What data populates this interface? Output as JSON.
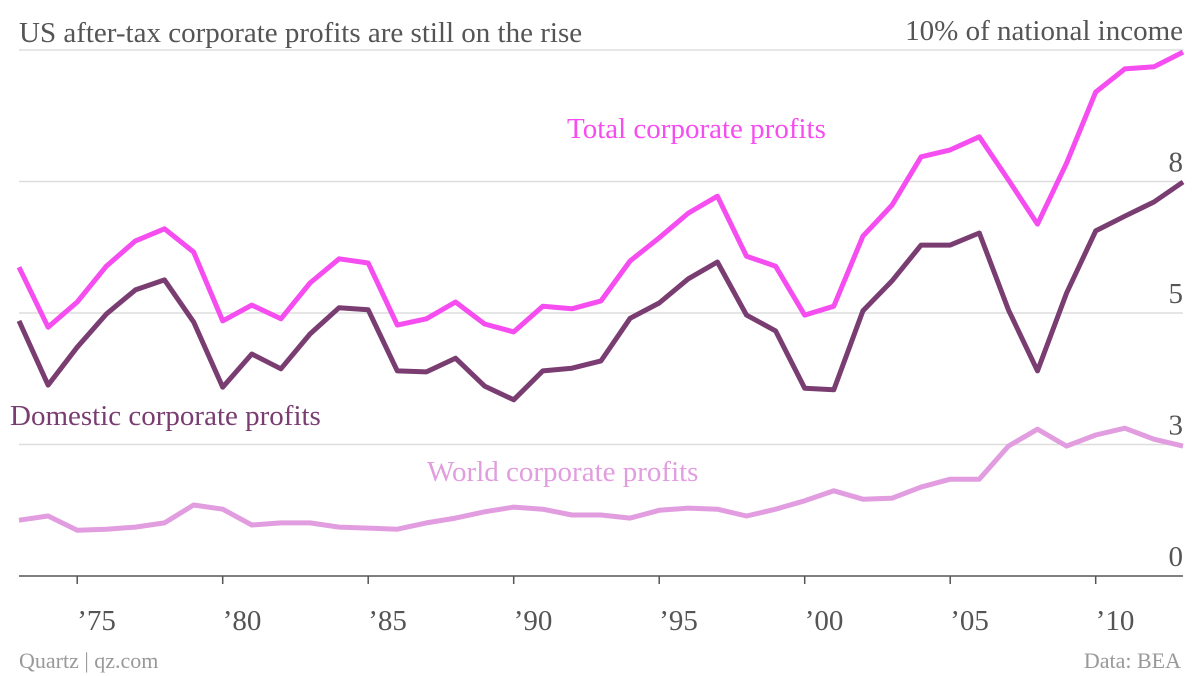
{
  "chart_data": {
    "type": "line",
    "title": "US after-tax corporate profits are still on the rise",
    "source": "Data: BEA",
    "credit": "Quartz | qz.com",
    "x": [
      1973,
      1974,
      1975,
      1976,
      1977,
      1978,
      1979,
      1980,
      1981,
      1982,
      1983,
      1984,
      1985,
      1986,
      1987,
      1988,
      1989,
      1990,
      1991,
      1992,
      1993,
      1994,
      1995,
      1996,
      1997,
      1998,
      1999,
      2000,
      2001,
      2002,
      2003,
      2004,
      2005,
      2006,
      2007,
      2008,
      2009,
      2010,
      2011,
      2012,
      2013
    ],
    "xlim": [
      1973,
      2013
    ],
    "xticks": [
      {
        "value": 1975,
        "label": "’75"
      },
      {
        "value": 1980,
        "label": "’80"
      },
      {
        "value": 1985,
        "label": "’85"
      },
      {
        "value": 1990,
        "label": "’90"
      },
      {
        "value": 1995,
        "label": "’95"
      },
      {
        "value": 2000,
        "label": "’00"
      },
      {
        "value": 2005,
        "label": "’05"
      },
      {
        "value": 2010,
        "label": "’10"
      }
    ],
    "ylim": [
      0,
      10
    ],
    "yticks": [
      0,
      {
        "value": 2.5,
        "label": "3"
      },
      5,
      {
        "value": 7.5,
        "label": "8"
      },
      {
        "value": 10,
        "label": "10% of national income"
      }
    ],
    "grid": true,
    "series": [
      {
        "name": "Total corporate profits",
        "color": "#f54df0",
        "values": [
          5.87,
          4.73,
          5.21,
          5.89,
          6.37,
          6.6,
          6.16,
          4.85,
          5.15,
          4.89,
          5.57,
          6.03,
          5.95,
          4.77,
          4.89,
          5.21,
          4.79,
          4.64,
          5.13,
          5.08,
          5.23,
          5.99,
          6.43,
          6.9,
          7.22,
          6.08,
          5.89,
          4.96,
          5.13,
          6.46,
          7.05,
          7.97,
          8.1,
          8.35,
          7.53,
          6.69,
          7.85,
          9.2,
          9.64,
          9.68,
          9.96
        ]
      },
      {
        "name": "Domestic corporate profits",
        "color": "#7a3d72",
        "values": [
          4.85,
          3.63,
          4.35,
          4.98,
          5.44,
          5.63,
          4.83,
          3.59,
          4.22,
          3.94,
          4.6,
          5.1,
          5.06,
          3.9,
          3.88,
          4.14,
          3.61,
          3.35,
          3.9,
          3.95,
          4.09,
          4.9,
          5.19,
          5.65,
          5.97,
          4.96,
          4.66,
          3.57,
          3.54,
          5.04,
          5.61,
          6.29,
          6.29,
          6.52,
          5.06,
          3.9,
          5.38,
          6.56,
          6.84,
          7.11,
          7.49
        ]
      },
      {
        "name": "World corporate profits",
        "color": "#e19ddf",
        "values": [
          1.06,
          1.14,
          0.87,
          0.89,
          0.93,
          1.01,
          1.35,
          1.27,
          0.97,
          1.01,
          1.01,
          0.93,
          0.91,
          0.89,
          1.01,
          1.1,
          1.22,
          1.31,
          1.27,
          1.16,
          1.16,
          1.1,
          1.25,
          1.29,
          1.27,
          1.14,
          1.27,
          1.43,
          1.62,
          1.46,
          1.48,
          1.69,
          1.84,
          1.84,
          2.47,
          2.79,
          2.47,
          2.68,
          2.81,
          2.6,
          2.47
        ]
      }
    ]
  }
}
